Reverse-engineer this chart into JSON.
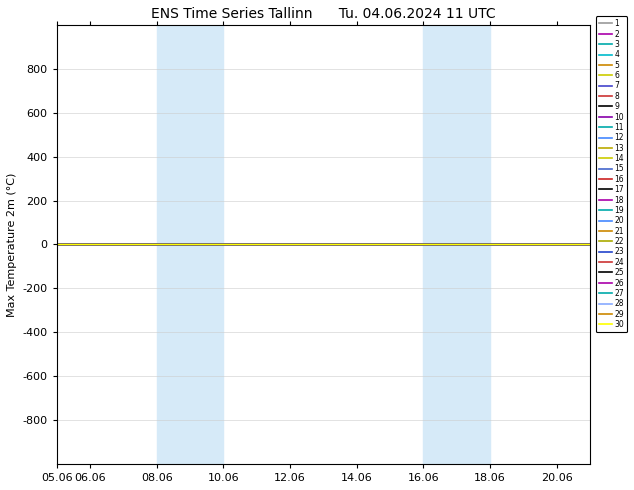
{
  "title": "ENS Time Series Tallinn      Tu. 04.06.2024 11 UTC",
  "ylabel": "Max Temperature 2m (°C)",
  "ylim": [
    1000,
    -1000
  ],
  "yticks": [
    800,
    600,
    400,
    200,
    0,
    -200,
    -400,
    -600,
    -800
  ],
  "ytick_labels": [
    "-800",
    "-600",
    "-400",
    "-200",
    "0",
    "200",
    "400",
    "600",
    "800"
  ],
  "xlim": [
    0,
    16
  ],
  "xtick_positions": [
    1,
    3,
    5,
    7,
    9,
    11,
    13,
    15
  ],
  "xtick_labels": [
    "06.06",
    "08.06",
    "10.06",
    "12.06",
    "14.06",
    "16.06",
    "18.06",
    "20.06"
  ],
  "shade_regions": [
    {
      "start": 3,
      "end": 5
    },
    {
      "start": 11,
      "end": 13
    }
  ],
  "shade_color": "#d6eaf8",
  "flat_value": 0.0,
  "num_members": 30,
  "member_colors": [
    "#999999",
    "#aa00aa",
    "#00aaaa",
    "#00bbcc",
    "#cc8800",
    "#cccc00",
    "#4444cc",
    "#cc3333",
    "#000000",
    "#8800aa",
    "#00aaaa",
    "#4488ff",
    "#bbaa00",
    "#cccc00",
    "#4466cc",
    "#cc2222",
    "#000000",
    "#aa00aa",
    "#00aaaa",
    "#4488ff",
    "#cc8800",
    "#aaaa00",
    "#2244cc",
    "#cc3333",
    "#000000",
    "#aa00aa",
    "#00aaaa",
    "#88aaff",
    "#cc8800",
    "#ffff00"
  ],
  "background_color": "#ffffff",
  "figsize": [
    6.34,
    4.9
  ],
  "dpi": 100
}
